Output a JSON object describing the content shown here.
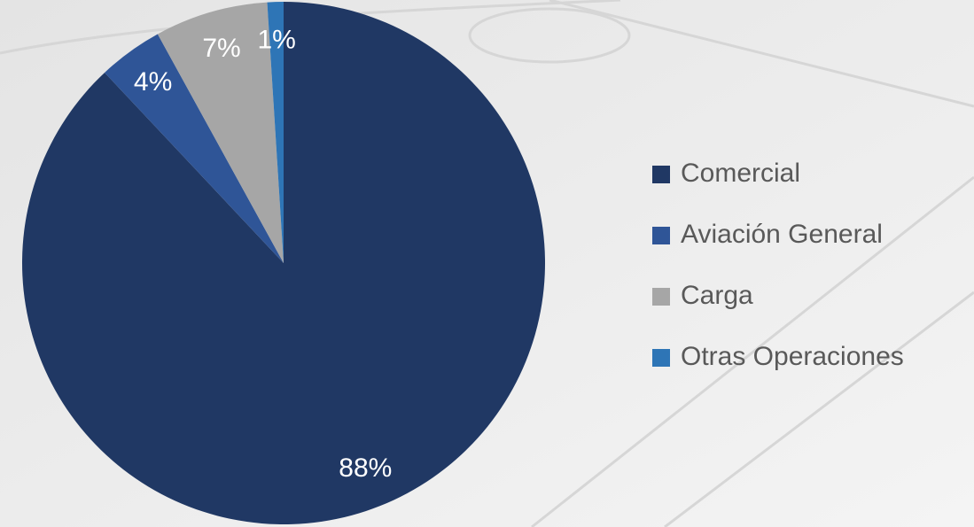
{
  "chart_data": {
    "type": "pie",
    "categories": [
      "Comercial",
      "Aviación General",
      "Carga",
      "Otras Operaciones"
    ],
    "values": [
      88,
      4,
      7,
      1
    ],
    "value_labels": [
      "88%",
      "4%",
      "7%",
      "1%"
    ],
    "colors": [
      "#203864",
      "#2f5597",
      "#a6a6a6",
      "#2e75b6"
    ],
    "legend": "right"
  }
}
